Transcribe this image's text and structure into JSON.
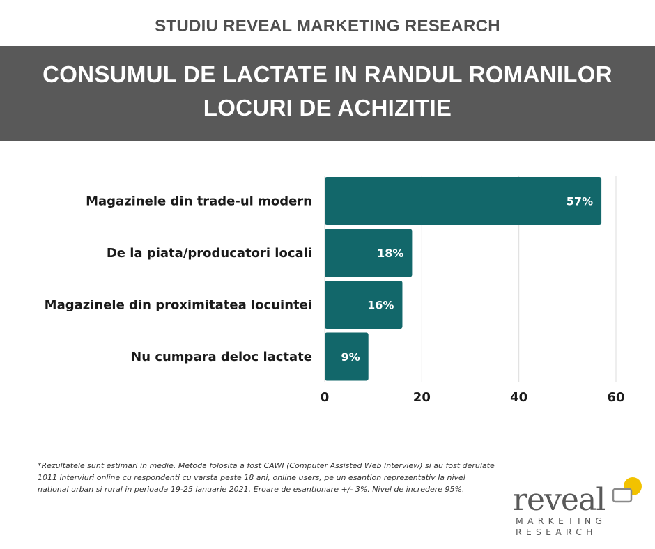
{
  "header": {
    "top_label": "STUDIU REVEAL MARKETING RESEARCH",
    "title_line1": "CONSUMUL DE LACTATE IN RANDUL ROMANILOR",
    "title_line2": "LOCURI DE ACHIZITIE"
  },
  "chart_data": {
    "type": "bar",
    "orientation": "horizontal",
    "categories": [
      "Magazinele din trade-ul modern",
      "De la piata/producatori locali",
      "Magazinele din proximitatea locuintei",
      "Nu cumpara deloc lactate"
    ],
    "values": [
      57,
      18,
      16,
      9
    ],
    "data_labels": [
      "57%",
      "18%",
      "16%",
      "9%"
    ],
    "x_ticks": [
      0,
      20,
      40,
      60
    ],
    "xlim": [
      0,
      60
    ],
    "grid": "vertical",
    "bar_color": "#12676a"
  },
  "footnote": "*Rezultatele sunt estimari in medie. Metoda folosita a fost CAWI (Computer Assisted Web Interview) si au fost derulate 1011 interviuri online cu respondenti cu varsta peste 18 ani, online users, pe un esantion reprezentativ la nivel national urban si rural in perioada 19-25 ianuarie 2021. Eroare de esantionare +/- 3%. Nivel de incredere 95%.",
  "logo": {
    "word": "reveal",
    "sub1": "MARKETING",
    "sub2": "RESEARCH",
    "accent": "#f2c200"
  }
}
